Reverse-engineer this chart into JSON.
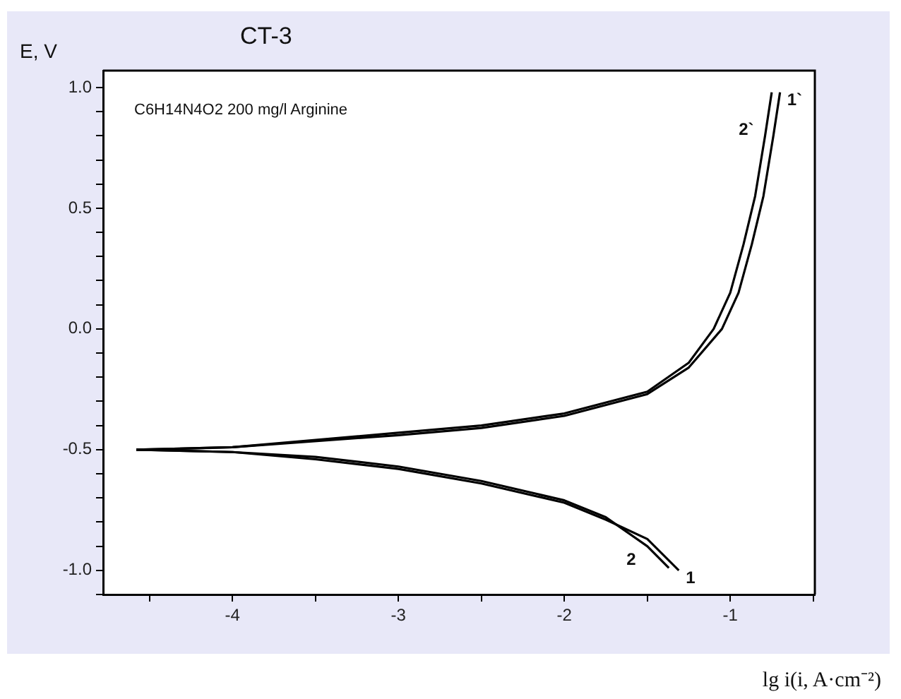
{
  "chart_data": {
    "type": "line",
    "title": "CT-3",
    "xlabel": "lg i(i, A·cm⁻²)",
    "ylabel": "E, V",
    "annotations": [
      "C6H14N4O2 200 mg/l Arginine"
    ],
    "xlim": [
      -4.78,
      -0.49
    ],
    "ylim": [
      -1.1,
      1.07
    ],
    "xticks": [
      {
        "value": -4.5,
        "label": null
      },
      -4,
      {
        "value": -3.5,
        "label": null
      },
      -3,
      {
        "value": -2.5,
        "label": null
      },
      -2,
      {
        "value": -1.5,
        "label": null
      },
      -1,
      {
        "value": -0.5,
        "label": null
      }
    ],
    "yticks": [
      {
        "value": -1.1,
        "label": null
      },
      {
        "value": -1,
        "label": "-1.0"
      },
      {
        "value": -0.9,
        "label": null
      },
      {
        "value": -0.8,
        "label": null
      },
      {
        "value": -0.7,
        "label": null
      },
      {
        "value": -0.6,
        "label": null
      },
      {
        "value": -0.5,
        "label": "-0.5"
      },
      {
        "value": -0.4,
        "label": null
      },
      {
        "value": -0.3,
        "label": null
      },
      {
        "value": -0.2,
        "label": null
      },
      {
        "value": -0.1,
        "label": null
      },
      {
        "value": 0,
        "label": "0.0"
      },
      {
        "value": 0.1,
        "label": null
      },
      {
        "value": 0.2,
        "label": null
      },
      {
        "value": 0.3,
        "label": null
      },
      {
        "value": 0.4,
        "label": null
      },
      {
        "value": 0.5,
        "label": "0.5"
      },
      {
        "value": 0.6,
        "label": null
      },
      {
        "value": 0.7,
        "label": null
      },
      {
        "value": 0.8,
        "label": null
      },
      {
        "value": 0.9,
        "label": null
      },
      {
        "value": 1,
        "label": "1.0"
      }
    ],
    "grid": false,
    "legend": false,
    "marker": "none",
    "line_style": "solid",
    "series": [
      {
        "name": "2`",
        "color": "#000000",
        "x": [
          -4.58,
          -4,
          -3,
          -2.5,
          -2,
          -1.5,
          -1.25,
          -1.1,
          -1.0,
          -0.92,
          -0.85,
          -0.79,
          -0.75
        ],
        "values": [
          -0.5,
          -0.49,
          -0.43,
          -0.4,
          -0.35,
          -0.26,
          -0.14,
          0.0,
          0.15,
          0.35,
          0.55,
          0.8,
          0.98
        ]
      },
      {
        "name": "1`",
        "color": "#000000",
        "x": [
          -4.58,
          -4,
          -3,
          -2.5,
          -2,
          -1.5,
          -1.25,
          -1.05,
          -0.95,
          -0.87,
          -0.8,
          -0.74,
          -0.7
        ],
        "values": [
          -0.5,
          -0.49,
          -0.44,
          -0.41,
          -0.36,
          -0.27,
          -0.16,
          0.0,
          0.15,
          0.35,
          0.55,
          0.8,
          0.98
        ]
      },
      {
        "name": "2",
        "color": "#000000",
        "x": [
          -4.58,
          -4,
          -3.5,
          -3,
          -2.5,
          -2,
          -1.75,
          -1.5,
          -1.37
        ],
        "values": [
          -0.5,
          -0.51,
          -0.53,
          -0.57,
          -0.63,
          -0.71,
          -0.78,
          -0.9,
          -0.99
        ]
      },
      {
        "name": "1",
        "color": "#000000",
        "x": [
          -4.58,
          -4,
          -3.5,
          -3,
          -2.5,
          -2,
          -1.75,
          -1.5,
          -1.31
        ],
        "values": [
          -0.5,
          -0.51,
          -0.54,
          -0.58,
          -0.64,
          -0.72,
          -0.79,
          -0.87,
          -1.0
        ]
      }
    ]
  }
}
